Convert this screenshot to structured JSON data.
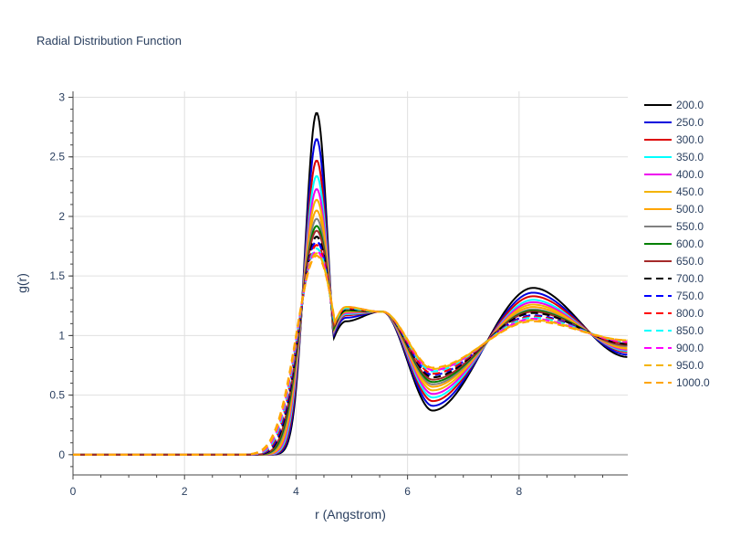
{
  "chart_data": {
    "type": "line",
    "title": "Radial Distribution Function",
    "xlabel": "r (Angstrom)",
    "ylabel": "g(r)",
    "xlim": [
      0,
      9.95
    ],
    "ylim": [
      -0.17,
      3.05
    ],
    "xticks": [
      0,
      2,
      4,
      6,
      8
    ],
    "yticks": [
      0,
      0.5,
      1,
      1.5,
      2,
      2.5,
      3
    ],
    "xtick_labels": [
      "0",
      "2",
      "4",
      "6",
      "8"
    ],
    "ytick_labels": [
      "0",
      "0.5",
      "1",
      "1.5",
      "2",
      "2.5",
      "3"
    ],
    "grid": true,
    "legend_position": "right",
    "series": [
      {
        "name": "200.0",
        "color": "#000000",
        "dash": "solid",
        "peak1": 2.87,
        "width1": 0.205,
        "onset": 3.55,
        "min1": 1.12,
        "shoulder": 1.2,
        "min2": 0.37,
        "peak2": 1.4,
        "end": 0.82
      },
      {
        "name": "250.0",
        "color": "#0000dd",
        "dash": "solid",
        "peak1": 2.65,
        "width1": 0.215,
        "onset": 3.52,
        "min1": 1.15,
        "shoulder": 1.2,
        "min2": 0.41,
        "peak2": 1.36,
        "end": 0.84
      },
      {
        "name": "300.0",
        "color": "#dd0000",
        "dash": "solid",
        "peak1": 2.47,
        "width1": 0.225,
        "onset": 3.49,
        "min1": 1.17,
        "shoulder": 1.2,
        "min2": 0.45,
        "peak2": 1.33,
        "end": 0.86
      },
      {
        "name": "350.0",
        "color": "#00ffff",
        "dash": "solid",
        "peak1": 2.34,
        "width1": 0.235,
        "onset": 3.46,
        "min1": 1.18,
        "shoulder": 1.2,
        "min2": 0.48,
        "peak2": 1.3,
        "end": 0.87
      },
      {
        "name": "400.0",
        "color": "#ee00ee",
        "dash": "solid",
        "peak1": 2.23,
        "width1": 0.245,
        "onset": 3.43,
        "min1": 1.19,
        "shoulder": 1.2,
        "min2": 0.51,
        "peak2": 1.28,
        "end": 0.88
      },
      {
        "name": "450.0",
        "color": "#f4b400",
        "dash": "solid",
        "peak1": 2.14,
        "width1": 0.255,
        "onset": 3.4,
        "min1": 1.2,
        "shoulder": 1.2,
        "min2": 0.54,
        "peak2": 1.26,
        "end": 0.89
      },
      {
        "name": "500.0",
        "color": "#ffa500",
        "dash": "solid",
        "peak1": 2.05,
        "width1": 0.265,
        "onset": 3.37,
        "min1": 1.2,
        "shoulder": 1.2,
        "min2": 0.57,
        "peak2": 1.24,
        "end": 0.9
      },
      {
        "name": "550.0",
        "color": "#808080",
        "dash": "solid",
        "peak1": 1.98,
        "width1": 0.275,
        "onset": 3.34,
        "min1": 1.21,
        "shoulder": 1.2,
        "min2": 0.59,
        "peak2": 1.22,
        "end": 0.91
      },
      {
        "name": "600.0",
        "color": "#008000",
        "dash": "solid",
        "peak1": 1.92,
        "width1": 0.285,
        "onset": 3.31,
        "min1": 1.21,
        "shoulder": 1.2,
        "min2": 0.61,
        "peak2": 1.21,
        "end": 0.92
      },
      {
        "name": "650.0",
        "color": "#a52a2a",
        "dash": "solid",
        "peak1": 1.88,
        "width1": 0.295,
        "onset": 3.28,
        "min1": 1.22,
        "shoulder": 1.2,
        "min2": 0.63,
        "peak2": 1.2,
        "end": 0.92
      },
      {
        "name": "700.0",
        "color": "#000000",
        "dash": "dash",
        "peak1": 1.83,
        "width1": 0.305,
        "onset": 3.25,
        "min1": 1.22,
        "shoulder": 1.2,
        "min2": 0.65,
        "peak2": 1.19,
        "end": 0.93
      },
      {
        "name": "750.0",
        "color": "#0000ff",
        "dash": "dash",
        "peak1": 1.79,
        "width1": 0.315,
        "onset": 3.22,
        "min1": 1.23,
        "shoulder": 1.2,
        "min2": 0.67,
        "peak2": 1.17,
        "end": 0.94
      },
      {
        "name": "800.0",
        "color": "#ff0000",
        "dash": "dash",
        "peak1": 1.76,
        "width1": 0.325,
        "onset": 3.19,
        "min1": 1.23,
        "shoulder": 1.2,
        "min2": 0.68,
        "peak2": 1.16,
        "end": 0.94
      },
      {
        "name": "850.0",
        "color": "#00ffff",
        "dash": "dash",
        "peak1": 1.73,
        "width1": 0.335,
        "onset": 3.16,
        "min1": 1.23,
        "shoulder": 1.2,
        "min2": 0.7,
        "peak2": 1.15,
        "end": 0.95
      },
      {
        "name": "900.0",
        "color": "#ff00ff",
        "dash": "dash",
        "peak1": 1.71,
        "width1": 0.345,
        "onset": 3.13,
        "min1": 1.24,
        "shoulder": 1.2,
        "min2": 0.71,
        "peak2": 1.14,
        "end": 0.95
      },
      {
        "name": "950.0",
        "color": "#f4b400",
        "dash": "dash",
        "peak1": 1.69,
        "width1": 0.355,
        "onset": 3.1,
        "min1": 1.24,
        "shoulder": 1.2,
        "min2": 0.72,
        "peak2": 1.13,
        "end": 0.96
      },
      {
        "name": "1000.0",
        "color": "#ffa500",
        "dash": "dash",
        "peak1": 1.67,
        "width1": 0.365,
        "onset": 3.07,
        "min1": 1.24,
        "shoulder": 1.2,
        "min2": 0.73,
        "peak2": 1.12,
        "end": 0.96
      }
    ]
  }
}
